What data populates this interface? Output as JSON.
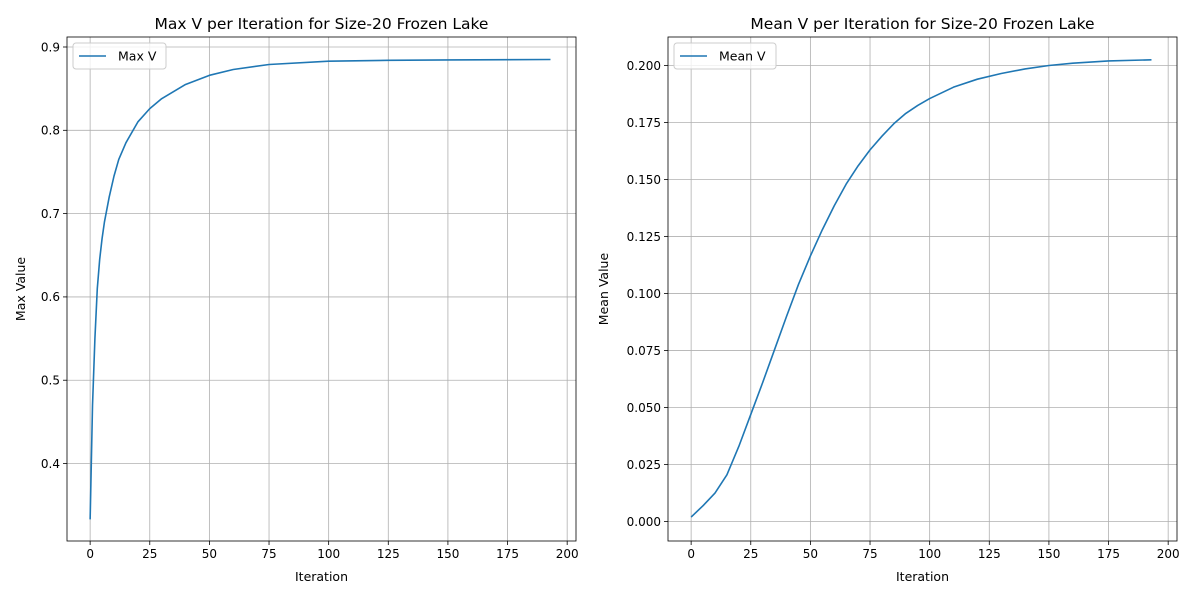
{
  "chart_data": [
    {
      "type": "line",
      "title": "Max V per Iteration for Size-20 Frozen Lake",
      "xlabel": "Iteration",
      "ylabel": "Max Value",
      "xlim": [
        -9.7,
        203.7
      ],
      "ylim": [
        0.307,
        0.912
      ],
      "xticks": [
        0,
        25,
        50,
        75,
        100,
        125,
        150,
        175,
        200
      ],
      "yticks": [
        0.4,
        0.5,
        0.6,
        0.7,
        0.8,
        0.9
      ],
      "ytick_labels": [
        "0.4",
        "0.5",
        "0.6",
        "0.7",
        "0.8",
        "0.9"
      ],
      "grid": true,
      "legend_position": "top-left",
      "color": "#1f77b4",
      "series": [
        {
          "name": "Max V",
          "x": [
            0,
            1,
            2,
            3,
            4,
            5,
            6,
            8,
            10,
            12,
            15,
            20,
            25,
            30,
            40,
            50,
            60,
            75,
            100,
            125,
            150,
            175,
            193
          ],
          "y": [
            0.333,
            0.47,
            0.55,
            0.61,
            0.645,
            0.67,
            0.69,
            0.72,
            0.745,
            0.765,
            0.785,
            0.81,
            0.826,
            0.838,
            0.855,
            0.866,
            0.873,
            0.879,
            0.883,
            0.884,
            0.8845,
            0.8848,
            0.885
          ]
        }
      ]
    },
    {
      "type": "line",
      "title": "Mean V per Iteration for Size-20 Frozen Lake",
      "xlabel": "Iteration",
      "ylabel": "Mean Value",
      "xlim": [
        -9.7,
        203.7
      ],
      "ylim": [
        -0.0085,
        0.2125
      ],
      "xticks": [
        0,
        25,
        50,
        75,
        100,
        125,
        150,
        175,
        200
      ],
      "yticks": [
        0.0,
        0.025,
        0.05,
        0.075,
        0.1,
        0.125,
        0.15,
        0.175,
        0.2
      ],
      "ytick_labels": [
        "0.000",
        "0.025",
        "0.050",
        "0.075",
        "0.100",
        "0.125",
        "0.150",
        "0.175",
        "0.200"
      ],
      "grid": true,
      "legend_position": "top-left",
      "color": "#1f77b4",
      "series": [
        {
          "name": "Mean V",
          "x": [
            0,
            5,
            10,
            15,
            20,
            25,
            30,
            35,
            40,
            45,
            50,
            55,
            60,
            65,
            70,
            75,
            80,
            85,
            90,
            95,
            100,
            110,
            120,
            130,
            140,
            150,
            160,
            175,
            193
          ],
          "y": [
            0.002,
            0.007,
            0.0125,
            0.0205,
            0.033,
            0.047,
            0.061,
            0.0755,
            0.09,
            0.104,
            0.1165,
            0.128,
            0.1385,
            0.148,
            0.156,
            0.163,
            0.169,
            0.1745,
            0.179,
            0.1825,
            0.1855,
            0.1905,
            0.194,
            0.1965,
            0.1985,
            0.2,
            0.201,
            0.202,
            0.2025
          ]
        }
      ]
    }
  ]
}
